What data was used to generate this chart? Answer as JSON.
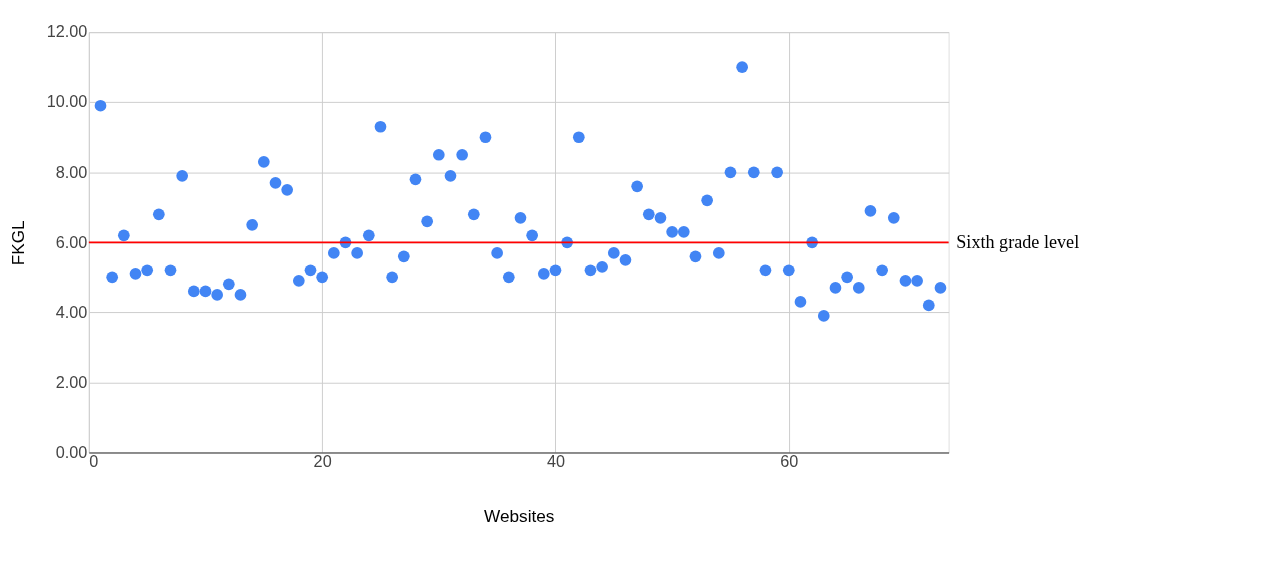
{
  "chart_data": {
    "type": "scatter",
    "xlabel": "Websites",
    "ylabel": "FKGL",
    "x": [
      1,
      2,
      3,
      4,
      5,
      6,
      7,
      8,
      9,
      10,
      11,
      12,
      13,
      14,
      15,
      16,
      17,
      18,
      19,
      20,
      21,
      22,
      23,
      24,
      25,
      26,
      27,
      28,
      29,
      30,
      31,
      32,
      33,
      34,
      35,
      36,
      37,
      38,
      39,
      40,
      41,
      42,
      43,
      44,
      45,
      46,
      47,
      48,
      49,
      50,
      51,
      52,
      53,
      54,
      55,
      56,
      57,
      58,
      59,
      60,
      61,
      62,
      63,
      64,
      65,
      66,
      67,
      68,
      69,
      70,
      71,
      72,
      73
    ],
    "series": [
      {
        "color": "#4285f4",
        "values": [
          9.9,
          5.0,
          6.2,
          5.1,
          5.2,
          6.8,
          5.2,
          7.9,
          4.6,
          4.6,
          4.5,
          4.8,
          4.5,
          6.5,
          8.3,
          7.7,
          7.5,
          4.9,
          5.2,
          5.0,
          5.7,
          6.0,
          5.7,
          6.2,
          9.3,
          5.0,
          5.6,
          7.8,
          6.6,
          8.5,
          7.9,
          8.5,
          6.8,
          9.0,
          5.7,
          5.0,
          6.7,
          6.2,
          5.1,
          5.2,
          6.0,
          9.0,
          5.2,
          5.3,
          5.7,
          5.5,
          7.6,
          6.8,
          6.7,
          6.3,
          6.3,
          5.6,
          7.2,
          5.7,
          8.0,
          11.0,
          8.0,
          5.2,
          8.0,
          5.2,
          4.3,
          6.0,
          3.9,
          4.7,
          5.0,
          4.7,
          6.9,
          5.2,
          6.7,
          4.9,
          4.9,
          4.2,
          4.7
        ]
      }
    ],
    "xlim": [
      0,
      73.7
    ],
    "xticks": [
      0,
      20,
      40,
      60
    ],
    "ylim": [
      0,
      12
    ],
    "yticks": [
      {
        "value": 0,
        "label": "0.00"
      },
      {
        "value": 2,
        "label": "2.00"
      },
      {
        "value": 4,
        "label": "4.00"
      },
      {
        "value": 6,
        "label": "6.00"
      },
      {
        "value": 8,
        "label": "8.00"
      },
      {
        "value": 10,
        "label": "10.00"
      },
      {
        "value": 12,
        "label": "12.00"
      }
    ],
    "ref_lines": [
      {
        "axis": "y",
        "value": 6,
        "label": "Sixth grade level",
        "color": "#ff0000",
        "line_style": "solid"
      }
    ],
    "grid": true,
    "marker": "circle"
  }
}
